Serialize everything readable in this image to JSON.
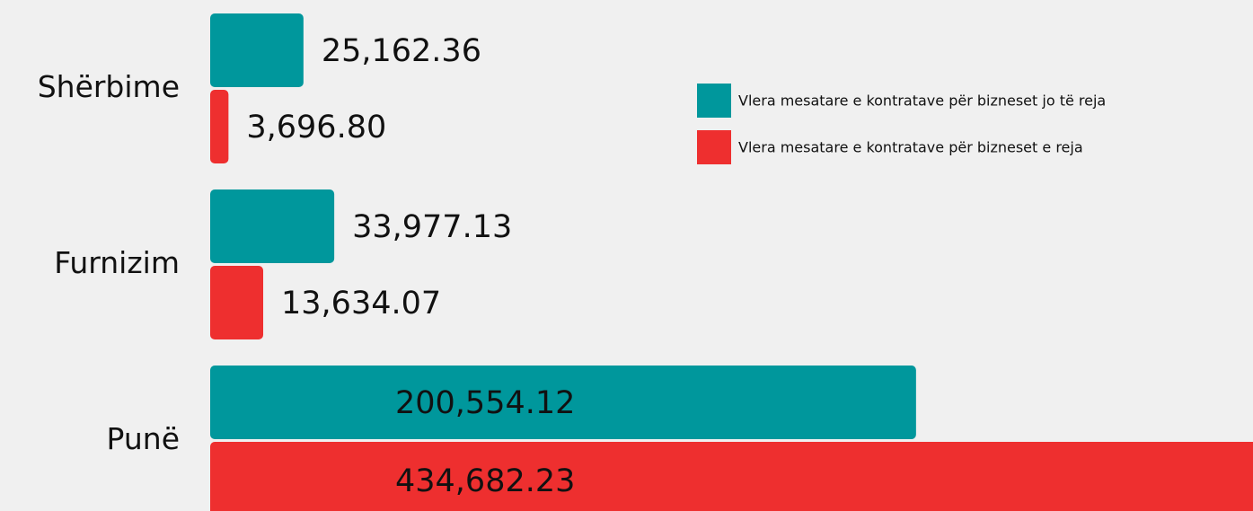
{
  "chart_data": {
    "type": "barh",
    "categories": [
      "Shërbime",
      "Furnizim",
      "Punë"
    ],
    "series": [
      {
        "name": "Vlera mesatare e kontratave për bizneset jo të reja",
        "color": "#00979c",
        "values": [
          25162.36,
          33977.13,
          200554.12
        ],
        "value_labels": [
          "25,162.36",
          "33,977.13",
          "200,554.12"
        ]
      },
      {
        "name": "Vlera mesatare e kontratave për bizneset e reja",
        "color": "#ee2f2f",
        "values": [
          3696.8,
          13634.07,
          434682.23
        ],
        "value_labels": [
          "3,696.80",
          "13,634.07",
          "434,682.23"
        ]
      }
    ],
    "xlim": [
      0,
      296000
    ],
    "legend": "upper right"
  }
}
